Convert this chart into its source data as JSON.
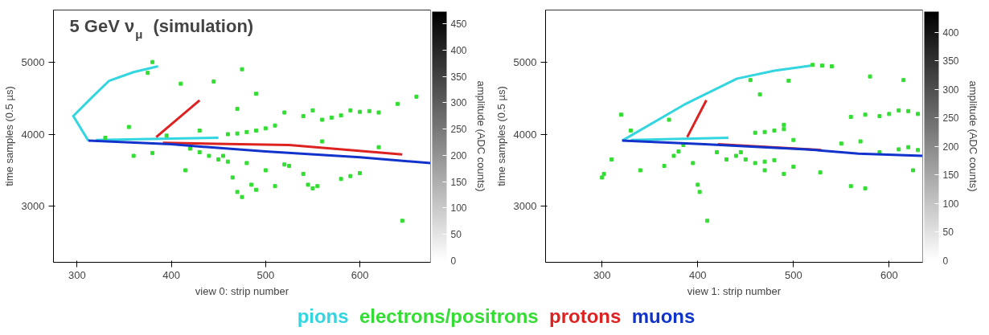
{
  "chart_data": [
    {
      "type": "scatter",
      "title": "5 GeV ν$_{μ}$ (simulation)",
      "xlabel": "view 0: strip number",
      "ylabel": "time samples (0.5 µs)",
      "clabel": "amplitude (ADC counts)",
      "xlim": [
        275,
        675
      ],
      "ylim": [
        2225,
        5720
      ],
      "xticks": [
        300,
        400,
        500,
        600
      ],
      "yticks": [
        3000,
        4000,
        5000
      ],
      "clim": [
        0,
        473
      ],
      "cticks": [
        0,
        50,
        100,
        150,
        200,
        250,
        300,
        350,
        400,
        450
      ],
      "legend": "bottom",
      "grid": false,
      "series": [
        {
          "name": "pions",
          "type": "line",
          "color": "#33d6e0",
          "x": [
            386,
            360,
            334,
            315,
            296,
            312,
            null,
            320,
            400,
            450
          ],
          "values": [
            4940,
            4860,
            4740,
            4500,
            4250,
            3910,
            null,
            3920,
            3940,
            3950
          ]
        },
        {
          "name": "electrons/positrons",
          "color": "#33dd33",
          "x": [
            330,
            355,
            360,
            380,
            410,
            420,
            430,
            440,
            450,
            455,
            460,
            465,
            470,
            475,
            480,
            485,
            490,
            500,
            510,
            520,
            540,
            545,
            550,
            555,
            580,
            590,
            600,
            645,
            460,
            470,
            480,
            490,
            500,
            510,
            520,
            540,
            550,
            560,
            570,
            580,
            590,
            600,
            610,
            620,
            640,
            660,
            410,
            445,
            475,
            490,
            380,
            375,
            470,
            430,
            415,
            620,
            560,
            525,
            395
          ],
          "values": [
            3950,
            4100,
            3700,
            3740,
            null,
            3800,
            3750,
            3700,
            3650,
            3700,
            3620,
            3400,
            3200,
            3130,
            3600,
            3300,
            3230,
            3500,
            3280,
            3580,
            3450,
            3300,
            3250,
            3280,
            3380,
            3420,
            3460,
            2800,
            4000,
            4010,
            4030,
            4050,
            4080,
            4120,
            4300,
            4250,
            4330,
            4200,
            4230,
            4260,
            4330,
            4310,
            4320,
            4300,
            4420,
            4520,
            4700,
            4730,
            4900,
            4560,
            5000,
            4850,
            4350,
            4050,
            3500,
            3820,
            3900,
            3560,
            3980
          ]
        },
        {
          "name": "protons",
          "type": "line",
          "color": "#dd2222",
          "x": [
            384,
            430,
            null,
            391,
            525,
            645
          ],
          "values": [
            3960,
            4470,
            null,
            3880,
            3850,
            3720
          ]
        },
        {
          "name": "muons",
          "type": "line",
          "color": "#1133cc",
          "x": [
            312,
            400,
            500,
            600,
            675
          ],
          "values": [
            3910,
            3860,
            3760,
            3680,
            3600
          ]
        }
      ]
    },
    {
      "type": "scatter",
      "xlabel": "view 1: strip number",
      "ylabel": "time samples (0.5 µs)",
      "clabel": "amplitude (ADC counts)",
      "xlim": [
        241,
        635
      ],
      "ylim": [
        2225,
        5720
      ],
      "xticks": [
        300,
        400,
        500,
        600
      ],
      "yticks": [
        3000,
        4000,
        5000
      ],
      "clim": [
        0,
        436
      ],
      "cticks": [
        0,
        50,
        100,
        150,
        200,
        250,
        300,
        350,
        400
      ],
      "grid": false,
      "series": [
        {
          "type": "line",
          "color": "#33d6e0",
          "x": [
            321,
            386,
            441,
            480,
            518,
            null,
            330,
            432
          ],
          "values": [
            3910,
            4410,
            4770,
            4880,
            4950,
            null,
            3920,
            3950
          ]
        },
        {
          "color": "#33dd33",
          "x": [
            300,
            302,
            310,
            320,
            340,
            365,
            375,
            380,
            395,
            400,
            402,
            410,
            420,
            430,
            440,
            445,
            450,
            460,
            470,
            480,
            470,
            490,
            500,
            460,
            470,
            480,
            490,
            490,
            455,
            465,
            495,
            520,
            530,
            540,
            560,
            575,
            590,
            600,
            610,
            620,
            630,
            590,
            610,
            620,
            630,
            560,
            575,
            570,
            550,
            370,
            500,
            580,
            615,
            528,
            625,
            385,
            330
          ],
          "values": [
            3400,
            3450,
            3650,
            4270,
            3500,
            3560,
            3700,
            3760,
            3600,
            3300,
            3200,
            2800,
            3750,
            3650,
            3700,
            3750,
            3650,
            3600,
            3620,
            3640,
            3500,
            3450,
            3550,
            4020,
            4030,
            4050,
            4070,
            4130,
            4750,
            4550,
            4740,
            4960,
            4950,
            4940,
            4240,
            4270,
            4250,
            4280,
            4330,
            4320,
            4280,
            3750,
            3790,
            3820,
            3780,
            3280,
            3250,
            3900,
            3870,
            4200,
            3920,
            4800,
            4750,
            3470,
            3500,
            3850,
            4050
          ]
        },
        {
          "type": "line",
          "color": "#dd2222",
          "x": [
            389,
            409,
            null,
            421,
            529
          ],
          "values": [
            3960,
            4470,
            null,
            3860,
            3780
          ]
        },
        {
          "type": "line",
          "color": "#1133cc",
          "x": [
            321,
            407,
            514,
            568,
            635
          ],
          "values": [
            3910,
            3860,
            3790,
            3730,
            3700
          ]
        }
      ]
    }
  ]
}
